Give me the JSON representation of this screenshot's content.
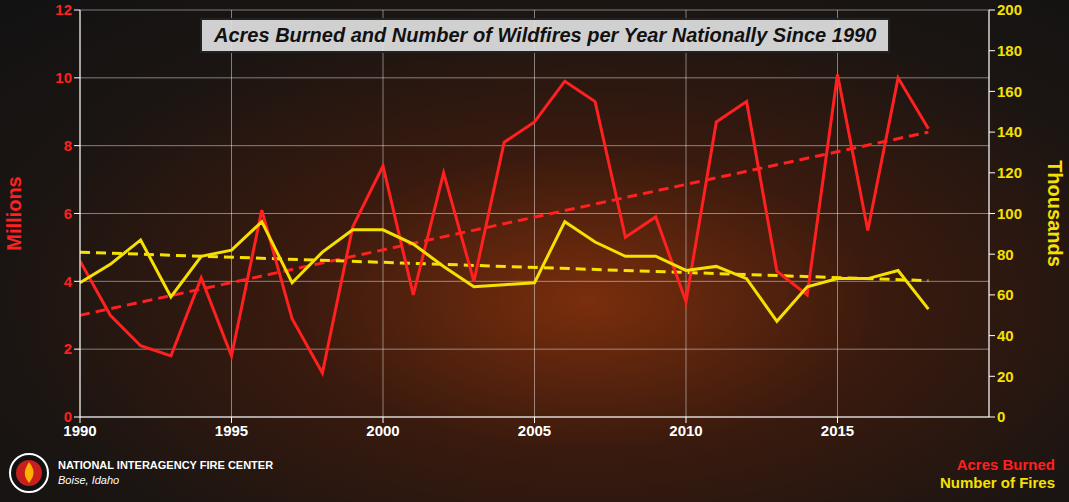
{
  "chart_data": {
    "type": "line",
    "title": "Acres Burned and Number of Wildfires per Year Nationally Since 1990",
    "annotations": [
      "NATIONAL INTERAGENCY FIRE CENTER",
      "Boise, Idaho"
    ],
    "x": [
      1990,
      1991,
      1992,
      1993,
      1994,
      1995,
      1996,
      1997,
      1998,
      1999,
      2000,
      2001,
      2002,
      2003,
      2004,
      2005,
      2006,
      2007,
      2008,
      2009,
      2010,
      2011,
      2012,
      2013,
      2014,
      2015,
      2016,
      2017,
      2018
    ],
    "xlim": [
      1990,
      2020
    ],
    "xticks": [
      1990,
      1995,
      2000,
      2005,
      2010,
      2015
    ],
    "ylim": [
      0,
      12
    ],
    "yticks": [
      0,
      2,
      4,
      6,
      8,
      10,
      12
    ],
    "ylabel": "Millions",
    "y2lim": [
      0,
      200
    ],
    "y2ticks": [
      0,
      20,
      40,
      60,
      80,
      100,
      120,
      140,
      160,
      180,
      200
    ],
    "y2label": "Thousands",
    "grid": true,
    "legend": "lower right",
    "series": [
      {
        "name": "Acres Burned",
        "color": "#ff2020",
        "line_style": "solid",
        "values": [
          4.6,
          3.0,
          2.1,
          1.8,
          4.1,
          1.8,
          6.1,
          2.9,
          1.3,
          5.6,
          7.4,
          3.6,
          7.2,
          4.0,
          8.1,
          8.7,
          9.9,
          9.3,
          5.3,
          5.9,
          3.4,
          8.7,
          9.3,
          4.3,
          3.6,
          10.1,
          5.5,
          10.0,
          8.5
        ],
        "trend": {
          "x": [
            1990,
            2018
          ],
          "values": [
            3.0,
            8.4
          ],
          "line_style": "dashed"
        }
      },
      {
        "name": "Number of Fires",
        "color": "#f5e000",
        "axis": "y2",
        "line_style": "solid",
        "values": [
          66,
          75,
          87,
          59,
          79,
          82,
          96,
          66,
          81,
          92,
          92,
          85,
          74,
          64,
          65,
          66,
          96,
          86,
          79,
          79,
          72,
          74,
          68,
          47,
          64,
          68,
          68,
          72,
          53
        ],
        "trend": {
          "x": [
            1990,
            2018
          ],
          "values": [
            81,
            67
          ],
          "line_style": "dashed"
        }
      }
    ]
  }
}
